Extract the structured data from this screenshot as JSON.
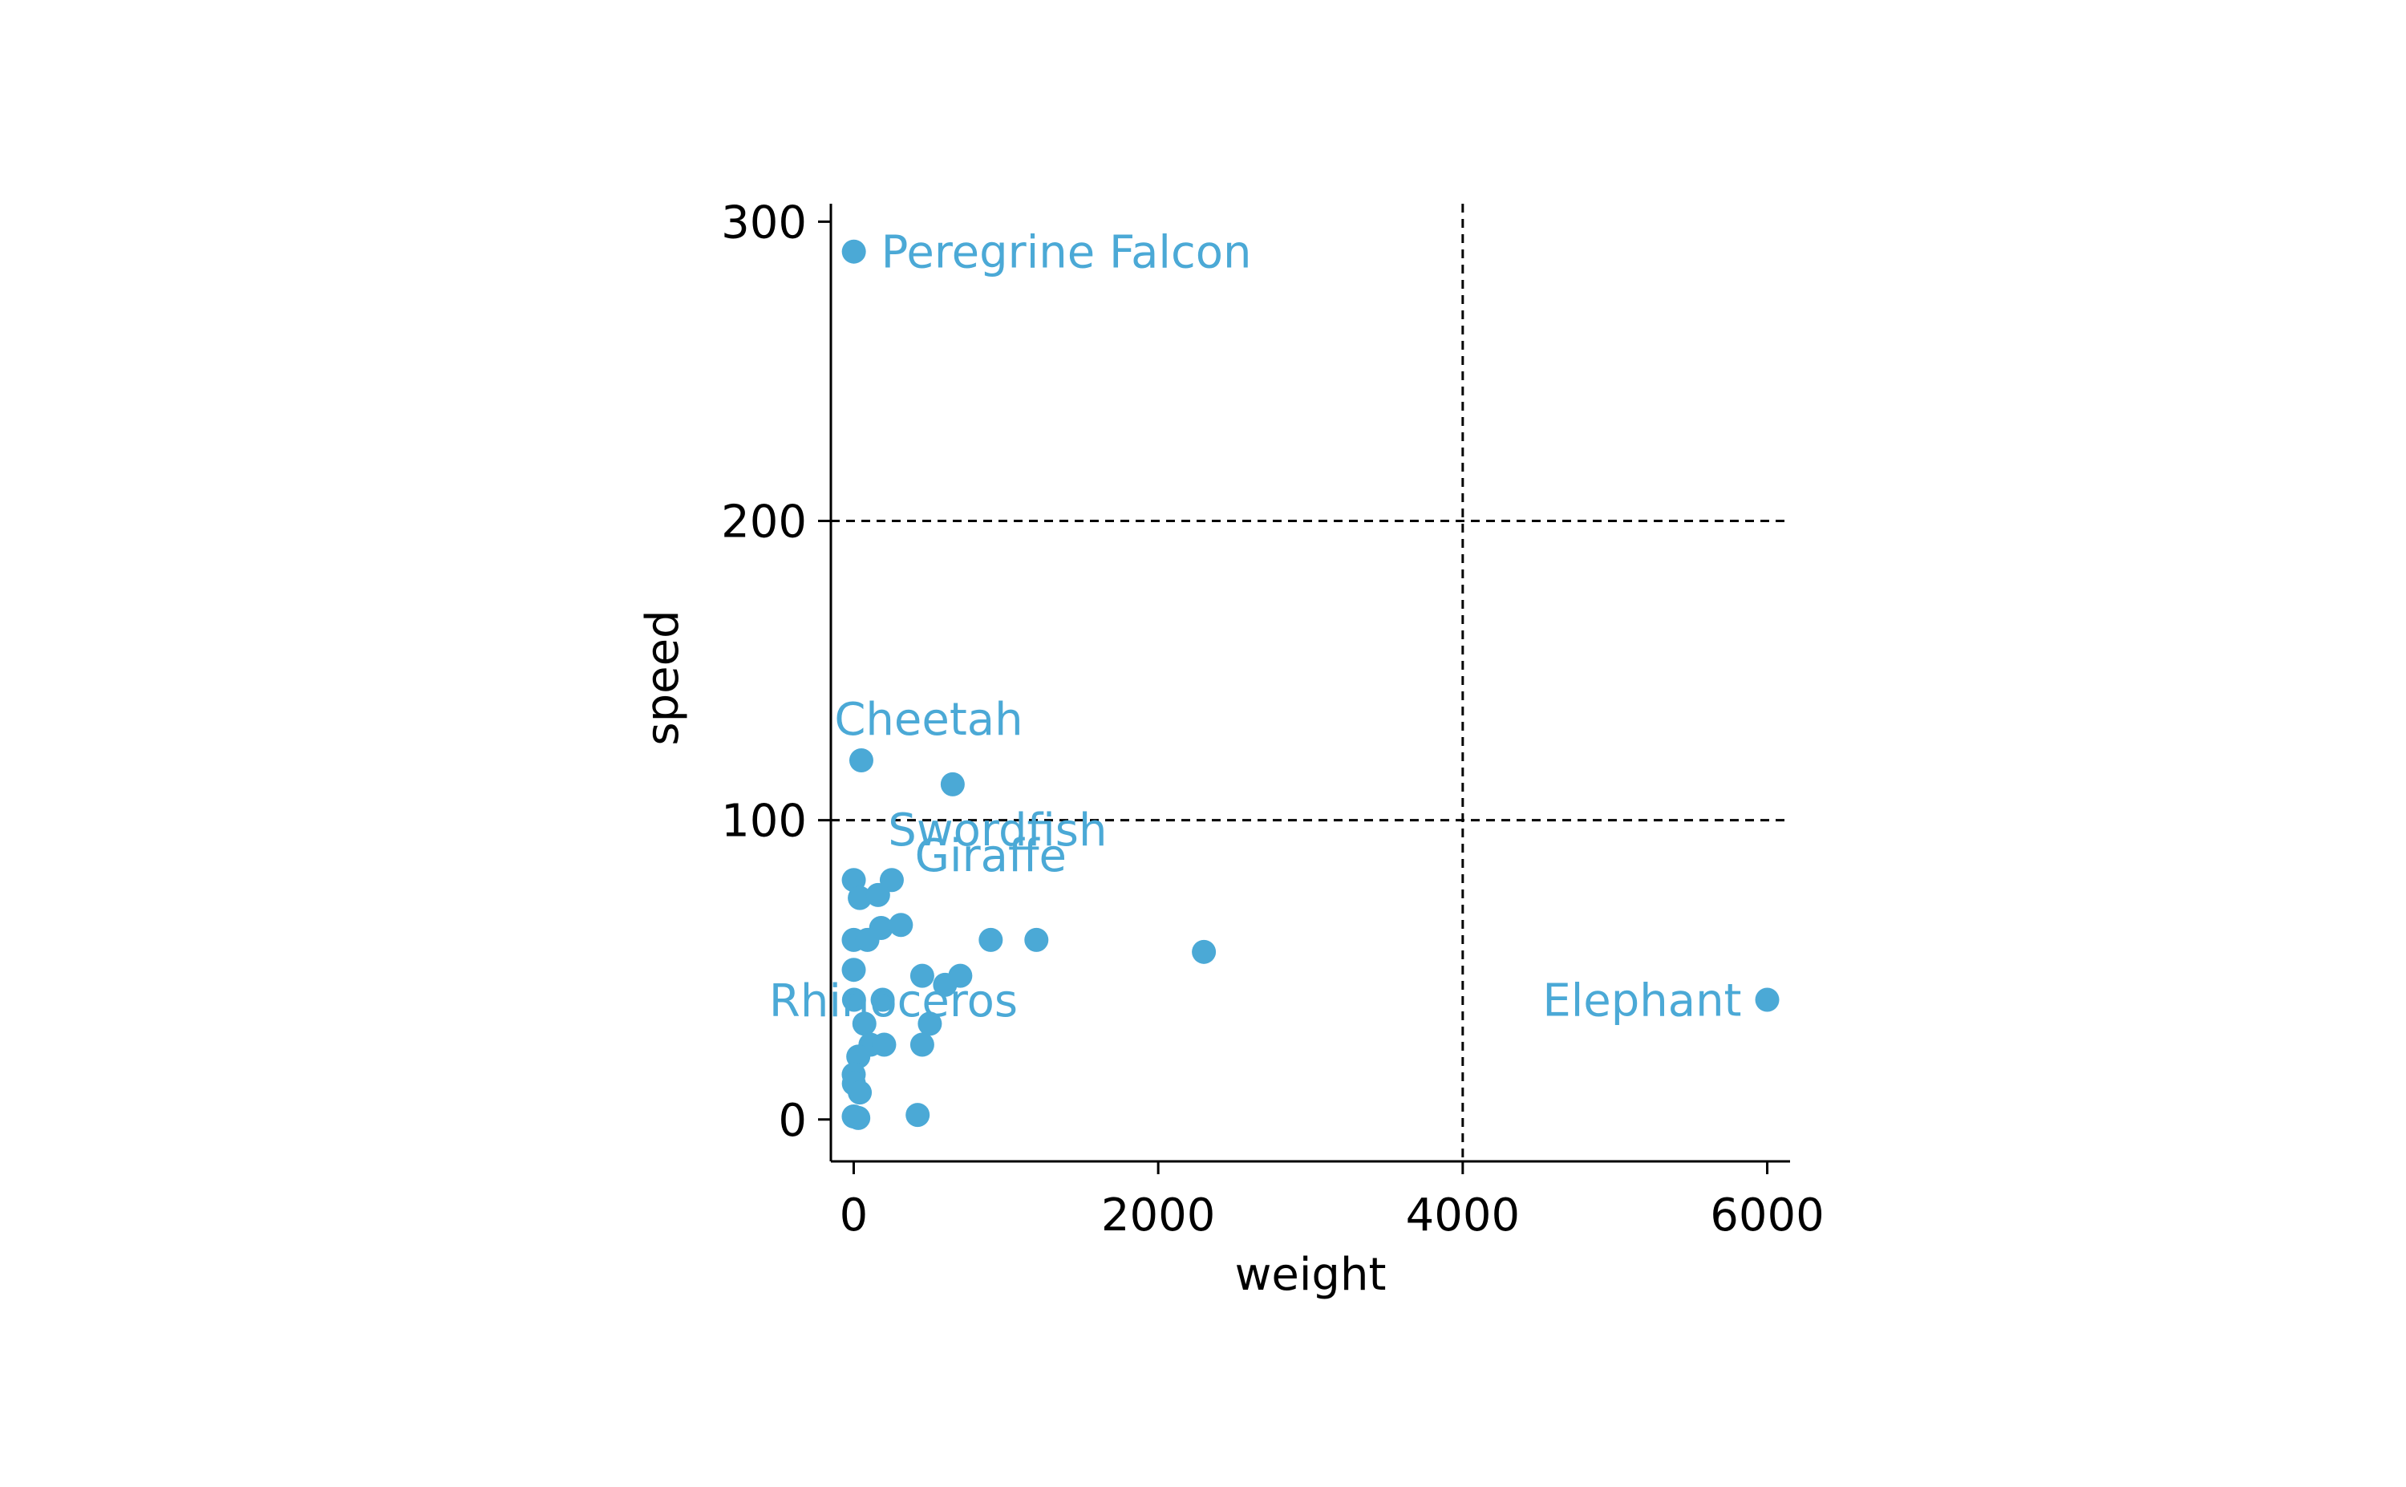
{
  "chart_data": {
    "type": "scatter",
    "title": "",
    "xlabel": "weight",
    "ylabel": "speed",
    "xlim": [
      -150,
      6150
    ],
    "ylim": [
      -14,
      306
    ],
    "xticks": [
      0,
      2000,
      4000,
      6000
    ],
    "xtick_labels": [
      "0",
      "2000",
      "4000",
      "6000"
    ],
    "yticks": [
      0,
      100,
      200,
      300
    ],
    "ytick_labels": [
      "0",
      "100",
      "200",
      "300"
    ],
    "grid": false,
    "reference_lines": {
      "x": [
        4000
      ],
      "y": [
        100,
        200
      ],
      "style": "dashed"
    },
    "point_color": "#4BA9D6",
    "series": [
      {
        "points": [
          {
            "x": 1,
            "y": 290
          },
          {
            "x": 50,
            "y": 120
          },
          {
            "x": 650,
            "y": 112
          },
          {
            "x": 0.5,
            "y": 80
          },
          {
            "x": 250,
            "y": 80
          },
          {
            "x": 40,
            "y": 74
          },
          {
            "x": 160,
            "y": 75
          },
          {
            "x": 180,
            "y": 64
          },
          {
            "x": 310,
            "y": 65
          },
          {
            "x": 0.1,
            "y": 60
          },
          {
            "x": 90,
            "y": 60
          },
          {
            "x": 900,
            "y": 60
          },
          {
            "x": 1200,
            "y": 60
          },
          {
            "x": 2300,
            "y": 56
          },
          {
            "x": 0.3,
            "y": 50
          },
          {
            "x": 450,
            "y": 48
          },
          {
            "x": 700,
            "y": 48
          },
          {
            "x": 600,
            "y": 45
          },
          {
            "x": 2,
            "y": 40
          },
          {
            "x": 190,
            "y": 40
          },
          {
            "x": 6000,
            "y": 40
          },
          {
            "x": 70,
            "y": 32
          },
          {
            "x": 500,
            "y": 32
          },
          {
            "x": 110,
            "y": 25
          },
          {
            "x": 200,
            "y": 25
          },
          {
            "x": 450,
            "y": 25
          },
          {
            "x": 30,
            "y": 21
          },
          {
            "x": 0.05,
            "y": 15
          },
          {
            "x": 1,
            "y": 12
          },
          {
            "x": 40,
            "y": 9
          },
          {
            "x": 0.01,
            "y": 1
          },
          {
            "x": 30,
            "y": 0.5
          },
          {
            "x": 420,
            "y": 1.5
          }
        ]
      }
    ],
    "annotations": [
      {
        "text": "Peregrine Falcon",
        "x": 1,
        "y": 290,
        "anchor": "start"
      },
      {
        "text": "Cheetah",
        "x": 50,
        "y": 120,
        "anchor": "center"
      },
      {
        "text": "Swordfish",
        "x": 650,
        "y": 112,
        "anchor": "center"
      },
      {
        "text": "Giraffe",
        "x": 900,
        "y": 75,
        "anchor": "center"
      },
      {
        "text": "Rhinoceros",
        "x": 2300,
        "y": 56,
        "anchor": "end"
      },
      {
        "text": "Elephant",
        "x": 6000,
        "y": 40,
        "anchor": "end"
      }
    ]
  }
}
